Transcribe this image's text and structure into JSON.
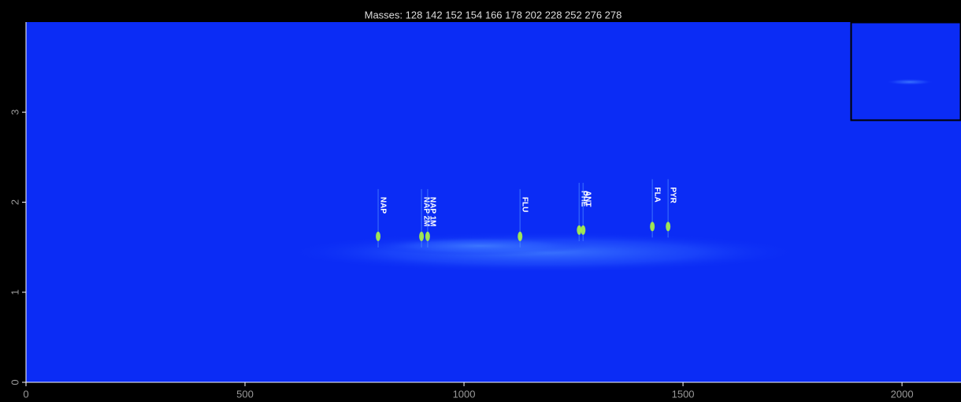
{
  "chart_data": {
    "type": "scatter",
    "title": "Masses:  128 142 152 154 166 178 202 228 252 276 278",
    "labels": [
      "NAP",
      "NAP 2M",
      "NAP 1M",
      "FLU",
      "PHE",
      "ANT",
      "FLA",
      "PYR"
    ],
    "x": [
      804,
      903,
      917,
      1128,
      1263,
      1272,
      1430,
      1466
    ],
    "values": [
      1.62,
      1.62,
      1.62,
      1.62,
      1.69,
      1.69,
      1.73,
      1.73
    ],
    "color": "#b6ff3a",
    "xlim": [
      0,
      2125
    ],
    "ylim": [
      0,
      4
    ],
    "xticks": [
      0,
      500,
      1000,
      1500,
      2000
    ],
    "yticks": [
      0,
      1,
      2,
      3
    ]
  }
}
